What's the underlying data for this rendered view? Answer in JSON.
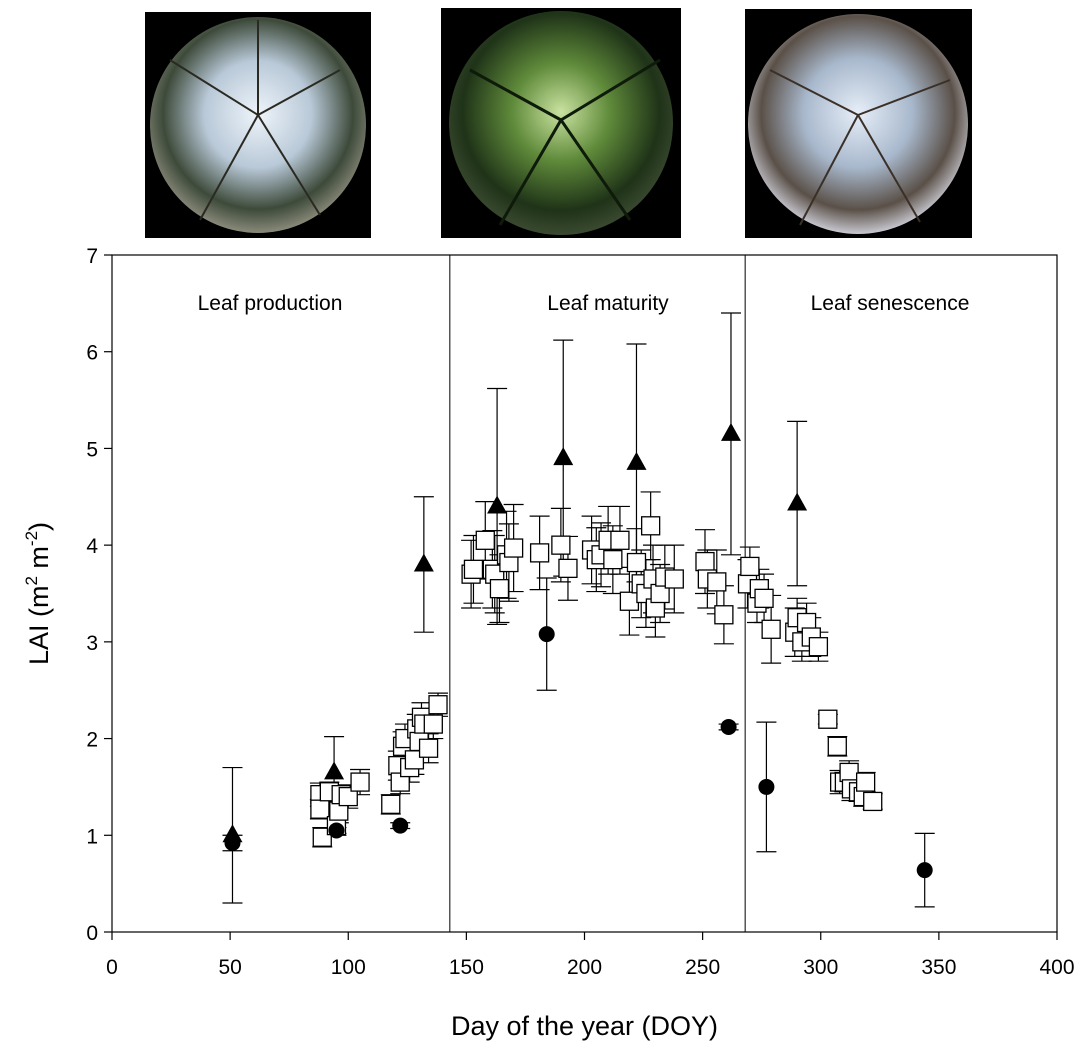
{
  "chart_data": {
    "type": "scatter",
    "xlabel": "Day of the year (DOY)",
    "ylabel_parts": [
      "LAI (m",
      "2",
      " m",
      "-2",
      ")"
    ],
    "annotations": [
      "Leaf production",
      "Leaf maturity",
      "Leaf senescence"
    ],
    "dividers": [
      143,
      268
    ],
    "xlim": [
      0,
      400
    ],
    "xticks": [
      0,
      50,
      100,
      150,
      200,
      250,
      300,
      350,
      400
    ],
    "ylim": [
      0,
      7
    ],
    "yticks": [
      0,
      1,
      2,
      3,
      4,
      5,
      6,
      7
    ],
    "series": [
      {
        "marker": "square",
        "color": "#000000",
        "x": [
          88,
          88,
          89,
          92,
          95,
          96,
          97,
          100,
          105,
          118,
          121,
          122,
          123,
          124,
          126,
          128,
          129,
          130,
          131,
          132,
          134,
          136,
          138,
          152,
          153,
          158,
          161,
          162,
          164,
          167,
          168,
          170,
          181,
          190,
          193,
          203,
          205,
          207,
          210,
          212,
          215,
          219,
          222,
          224,
          226,
          228,
          229,
          230,
          232,
          234,
          238,
          251,
          252,
          256,
          259,
          269,
          270,
          273,
          274,
          276,
          279,
          289,
          290,
          292,
          294,
          296,
          299,
          303,
          307,
          308,
          310,
          312,
          313,
          316,
          318,
          319,
          322
        ],
        "values": [
          1.42,
          1.27,
          0.98,
          1.45,
          1.1,
          1.25,
          1.42,
          1.4,
          1.55,
          1.32,
          1.72,
          1.55,
          1.92,
          2.0,
          1.7,
          1.78,
          2.1,
          1.97,
          2.22,
          2.15,
          1.9,
          2.15,
          2.35,
          3.7,
          3.75,
          4.05,
          3.75,
          3.7,
          3.55,
          3.9,
          3.82,
          3.97,
          3.92,
          4.0,
          3.76,
          3.95,
          3.85,
          3.9,
          4.05,
          3.85,
          4.05,
          3.42,
          3.82,
          3.6,
          3.5,
          4.2,
          3.65,
          3.35,
          3.5,
          3.67,
          3.65,
          3.83,
          3.65,
          3.62,
          3.28,
          3.6,
          3.78,
          3.4,
          3.55,
          3.45,
          3.13,
          3.1,
          3.25,
          3.0,
          3.2,
          3.05,
          2.95,
          2.2,
          1.92,
          1.55,
          1.55,
          1.65,
          1.48,
          1.45,
          1.4,
          1.55,
          1.35
        ],
        "errors": [
          0.12,
          0.1,
          0.1,
          0.1,
          0.1,
          0.12,
          0.1,
          0.12,
          0.13,
          0.1,
          0.15,
          0.12,
          0.15,
          0.15,
          0.15,
          0.15,
          0.15,
          0.15,
          0.15,
          0.15,
          0.15,
          0.15,
          0.12,
          0.35,
          0.35,
          0.4,
          0.4,
          0.4,
          0.35,
          0.45,
          0.4,
          0.45,
          0.38,
          0.38,
          0.33,
          0.35,
          0.33,
          0.33,
          0.35,
          0.35,
          0.35,
          0.35,
          0.35,
          0.35,
          0.35,
          0.35,
          0.35,
          0.3,
          0.3,
          0.33,
          0.35,
          0.33,
          0.3,
          0.33,
          0.3,
          0.25,
          0.2,
          0.2,
          0.2,
          0.25,
          0.35,
          0.25,
          0.2,
          0.2,
          0.2,
          0.2,
          0.15,
          0.05,
          0.1,
          0.12,
          0.1,
          0.12,
          0.12,
          0.1,
          0.1,
          0.1,
          0.08
        ]
      },
      {
        "marker": "triangle",
        "color": "#000000",
        "x": [
          51,
          94,
          132,
          163,
          191,
          222,
          262,
          290
        ],
        "values": [
          1.0,
          1.65,
          3.8,
          4.4,
          4.9,
          4.85,
          5.15,
          4.43
        ],
        "errors": [
          0.7,
          0.37,
          0.7,
          1.22,
          1.22,
          1.23,
          1.25,
          0.85
        ]
      },
      {
        "marker": "circle",
        "color": "#000000",
        "x": [
          51,
          95,
          122,
          184,
          261,
          277,
          344
        ],
        "values": [
          0.92,
          1.05,
          1.1,
          3.08,
          2.12,
          1.5,
          0.64
        ],
        "errors": [
          0.08,
          0.03,
          0.03,
          0.58,
          0.03,
          0.67,
          0.38
        ]
      }
    ]
  }
}
